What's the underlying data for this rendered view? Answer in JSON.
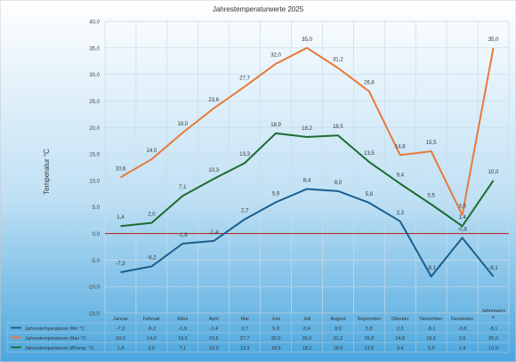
{
  "chart_data": {
    "type": "line",
    "title": "Jahrestemperaturwerte 2025",
    "ylabel": "Temperatur °C",
    "xlabel": "",
    "ylim": [
      -15,
      40
    ],
    "yticks": [
      "-15,0",
      "-10,0",
      "-5,0",
      "0,0",
      "5,0",
      "10,0",
      "15,0",
      "20,0",
      "25,0",
      "30,0",
      "35,0",
      "40,0"
    ],
    "ytick_values": [
      -15,
      -10,
      -5,
      0,
      5,
      10,
      15,
      20,
      25,
      30,
      35,
      40
    ],
    "categories": [
      "Januar",
      "Februar",
      "März",
      "April",
      "Mai",
      "Juni",
      "Juli",
      "August",
      "September",
      "Oktober",
      "November",
      "Dezember",
      "Jahreswert e"
    ],
    "grid": true,
    "legend": "data-table-bottom",
    "series": [
      {
        "name": "Jahrestemperaturen Min °C",
        "color": "#1a5e8e",
        "values": [
          -7.3,
          -6.2,
          -1.9,
          -1.4,
          2.7,
          5.9,
          8.4,
          8.0,
          5.8,
          2.3,
          -8.1,
          -0.8,
          -8.1
        ],
        "labels": [
          "-7,3",
          "-6,2",
          "-1,9",
          "-1,4",
          "2,7",
          "5,9",
          "8,4",
          "8,0",
          "5,8",
          "2,3",
          "-8,1",
          "-0,8",
          "-8,1"
        ]
      },
      {
        "name": "Jahrestemperaturen Max °C",
        "color": "#e8793b",
        "values": [
          10.6,
          14.0,
          19.0,
          23.6,
          27.7,
          32.0,
          35.0,
          31.2,
          26.8,
          14.8,
          15.5,
          3.5,
          35.0
        ],
        "labels": [
          "10,6",
          "14,0",
          "19,0",
          "23,6",
          "27,7",
          "32,0",
          "35,0",
          "31,2",
          "26,8",
          "14,8",
          "15,5",
          "3,5",
          "35,0"
        ]
      },
      {
        "name": "Jahrestemperaturen ØTemp. °C",
        "color": "#1e6b30",
        "values": [
          1.4,
          2.0,
          7.1,
          10.3,
          13.3,
          18.9,
          18.2,
          18.5,
          13.5,
          9.4,
          5.5,
          1.4,
          10.0
        ],
        "labels": [
          "1,4",
          "2,0",
          "7,1",
          "10,3",
          "13,3",
          "18,9",
          "18,2",
          "18,5",
          "13,5",
          "9,4",
          "5,5",
          "1,4",
          "10,0"
        ]
      }
    ],
    "zero_line_color": "#b8312f"
  }
}
